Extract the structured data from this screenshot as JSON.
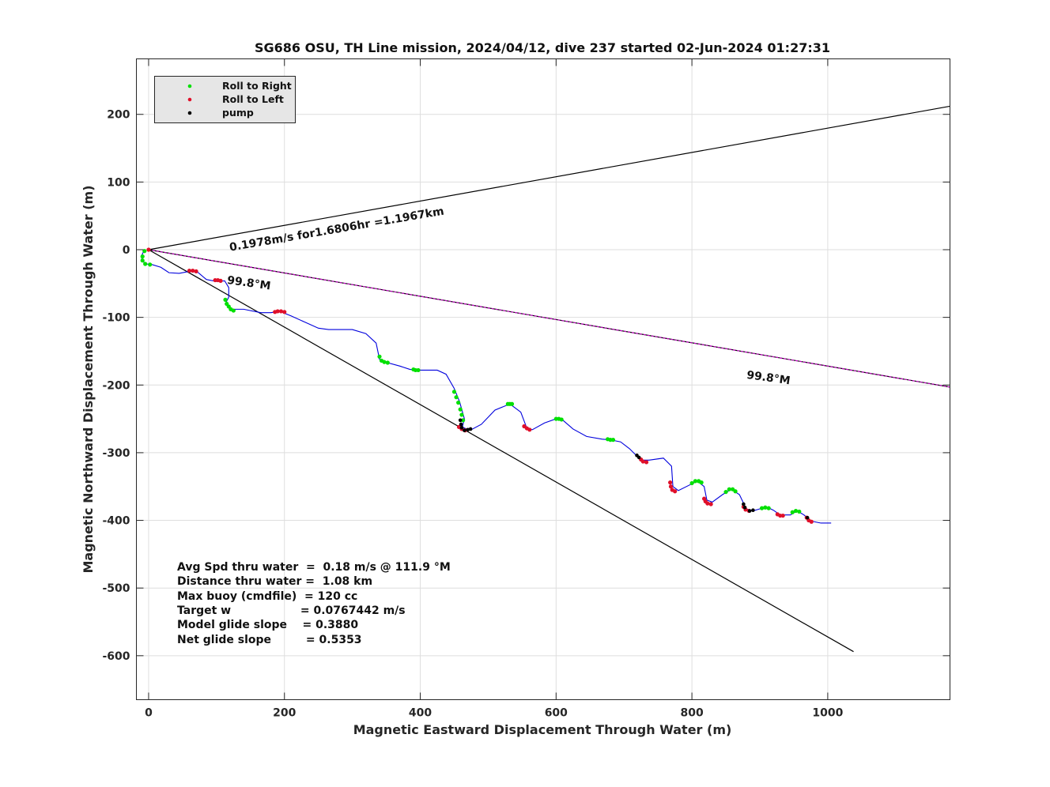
{
  "chart_data": {
    "type": "scatter",
    "title": "SG686 OSU, TH Line mission, 2024/04/12, dive 237 started 02-Jun-2024 01:27:31",
    "xlabel": "Magnetic Eastward Displacement Through Water (m)",
    "ylabel": "Magnetic Northward Displacement Through Water (m)",
    "xlim": [
      -18,
      1180
    ],
    "ylim": [
      -665,
      282
    ],
    "x_ticks": [
      0,
      200,
      400,
      600,
      800,
      1000
    ],
    "y_ticks": [
      200,
      100,
      0,
      -100,
      -200,
      -300,
      -400,
      -500,
      -600
    ],
    "grid": true,
    "legend_position": "top-left",
    "legend": [
      {
        "label": "Roll to Right",
        "color": "#00e000"
      },
      {
        "label": "Roll to Left",
        "color": "#e0102a"
      },
      {
        "label": "pump",
        "color": "#000000"
      }
    ],
    "reference_lines": [
      {
        "color": "#000000",
        "points": [
          [
            0,
            0
          ],
          [
            1180,
            212
          ]
        ]
      },
      {
        "color": "#000000",
        "points": [
          [
            0,
            0
          ],
          [
            1038,
            -594
          ]
        ]
      },
      {
        "color": "#000000",
        "points": [
          [
            0,
            0
          ],
          [
            1180,
            -203
          ]
        ]
      },
      {
        "color": "#cc00cc",
        "points": [
          [
            0,
            0
          ],
          [
            1180,
            -203
          ]
        ],
        "dashed": true
      }
    ],
    "track_color": "#0000dd",
    "track": [
      [
        -6,
        0
      ],
      [
        -10,
        -8
      ],
      [
        -10,
        -16
      ],
      [
        -4,
        -21
      ],
      [
        5,
        -22
      ],
      [
        18,
        -26
      ],
      [
        30,
        -34
      ],
      [
        45,
        -35
      ],
      [
        60,
        -32
      ],
      [
        72,
        -33
      ],
      [
        85,
        -44
      ],
      [
        100,
        -47
      ],
      [
        112,
        -46
      ],
      [
        118,
        -56
      ],
      [
        118,
        -70
      ],
      [
        113,
        -80
      ],
      [
        120,
        -88
      ],
      [
        140,
        -88
      ],
      [
        165,
        -93
      ],
      [
        180,
        -93
      ],
      [
        193,
        -91
      ],
      [
        210,
        -98
      ],
      [
        230,
        -107
      ],
      [
        250,
        -116
      ],
      [
        265,
        -118
      ],
      [
        300,
        -118
      ],
      [
        320,
        -124
      ],
      [
        335,
        -138
      ],
      [
        340,
        -162
      ],
      [
        348,
        -166
      ],
      [
        370,
        -172
      ],
      [
        385,
        -177
      ],
      [
        398,
        -178
      ],
      [
        425,
        -178
      ],
      [
        438,
        -184
      ],
      [
        450,
        -205
      ],
      [
        458,
        -225
      ],
      [
        465,
        -250
      ],
      [
        462,
        -262
      ],
      [
        470,
        -266
      ],
      [
        475,
        -266
      ],
      [
        490,
        -258
      ],
      [
        510,
        -237
      ],
      [
        532,
        -228
      ],
      [
        548,
        -240
      ],
      [
        557,
        -264
      ],
      [
        565,
        -266
      ],
      [
        583,
        -256
      ],
      [
        600,
        -250
      ],
      [
        610,
        -252
      ],
      [
        625,
        -265
      ],
      [
        645,
        -276
      ],
      [
        668,
        -280
      ],
      [
        680,
        -281
      ],
      [
        695,
        -284
      ],
      [
        708,
        -294
      ],
      [
        725,
        -311
      ],
      [
        737,
        -311
      ],
      [
        758,
        -308
      ],
      [
        770,
        -320
      ],
      [
        772,
        -350
      ],
      [
        780,
        -356
      ],
      [
        800,
        -346
      ],
      [
        808,
        -342
      ],
      [
        818,
        -350
      ],
      [
        822,
        -370
      ],
      [
        830,
        -373
      ],
      [
        845,
        -362
      ],
      [
        858,
        -354
      ],
      [
        870,
        -362
      ],
      [
        880,
        -383
      ],
      [
        890,
        -386
      ],
      [
        900,
        -383
      ],
      [
        912,
        -381
      ],
      [
        920,
        -385
      ],
      [
        930,
        -392
      ],
      [
        945,
        -392
      ],
      [
        955,
        -386
      ],
      [
        965,
        -392
      ],
      [
        975,
        -401
      ],
      [
        990,
        -404
      ],
      [
        1005,
        -404
      ]
    ],
    "roll_right": [
      [
        -6,
        -2
      ],
      [
        -9,
        -10
      ],
      [
        -9,
        -16
      ],
      [
        -5,
        -21
      ],
      [
        2,
        -22
      ],
      [
        113,
        -74
      ],
      [
        115,
        -80
      ],
      [
        118,
        -84
      ],
      [
        121,
        -88
      ],
      [
        125,
        -90
      ],
      [
        340,
        -158
      ],
      [
        343,
        -164
      ],
      [
        347,
        -166
      ],
      [
        352,
        -167
      ],
      [
        390,
        -177
      ],
      [
        393,
        -178
      ],
      [
        397,
        -178
      ],
      [
        450,
        -210
      ],
      [
        453,
        -218
      ],
      [
        456,
        -226
      ],
      [
        459,
        -236
      ],
      [
        461,
        -244
      ],
      [
        463,
        -252
      ],
      [
        529,
        -228
      ],
      [
        532,
        -228
      ],
      [
        535,
        -228
      ],
      [
        600,
        -250
      ],
      [
        604,
        -250
      ],
      [
        608,
        -251
      ],
      [
        676,
        -280
      ],
      [
        680,
        -281
      ],
      [
        684,
        -281
      ],
      [
        800,
        -345
      ],
      [
        805,
        -342
      ],
      [
        810,
        -342
      ],
      [
        814,
        -344
      ],
      [
        850,
        -358
      ],
      [
        855,
        -354
      ],
      [
        860,
        -354
      ],
      [
        864,
        -357
      ],
      [
        903,
        -382
      ],
      [
        908,
        -381
      ],
      [
        913,
        -382
      ],
      [
        948,
        -388
      ],
      [
        953,
        -386
      ],
      [
        958,
        -387
      ]
    ],
    "roll_left": [
      [
        0,
        0
      ],
      [
        60,
        -31
      ],
      [
        65,
        -31
      ],
      [
        70,
        -32
      ],
      [
        98,
        -45
      ],
      [
        102,
        -45
      ],
      [
        106,
        -46
      ],
      [
        186,
        -92
      ],
      [
        190,
        -91
      ],
      [
        195,
        -91
      ],
      [
        200,
        -92
      ],
      [
        457,
        -262
      ],
      [
        461,
        -265
      ],
      [
        466,
        -267
      ],
      [
        553,
        -261
      ],
      [
        557,
        -264
      ],
      [
        561,
        -266
      ],
      [
        725,
        -310
      ],
      [
        728,
        -313
      ],
      [
        733,
        -314
      ],
      [
        768,
        -344
      ],
      [
        769,
        -350
      ],
      [
        771,
        -355
      ],
      [
        775,
        -357
      ],
      [
        818,
        -368
      ],
      [
        820,
        -372
      ],
      [
        823,
        -375
      ],
      [
        828,
        -376
      ],
      [
        876,
        -380
      ],
      [
        879,
        -384
      ],
      [
        884,
        -386
      ],
      [
        926,
        -391
      ],
      [
        930,
        -393
      ],
      [
        934,
        -393
      ],
      [
        969,
        -396
      ],
      [
        972,
        -400
      ],
      [
        976,
        -402
      ]
    ],
    "pump": [
      [
        459,
        -252
      ],
      [
        460,
        -258
      ],
      [
        461,
        -263
      ],
      [
        465,
        -267
      ],
      [
        470,
        -266
      ],
      [
        474,
        -265
      ],
      [
        719,
        -304
      ],
      [
        722,
        -307
      ],
      [
        876,
        -376
      ],
      [
        878,
        -381
      ],
      [
        885,
        -386
      ],
      [
        890,
        -385
      ],
      [
        970,
        -396
      ]
    ],
    "annotations": [
      {
        "text": "0.1978m/s for1.6806hr =1.1967km",
        "x": 120,
        "y": -2,
        "rotate": -9.7
      },
      {
        "text": "99.8°M",
        "x": 115,
        "y": -50,
        "rotate": 8
      },
      {
        "text": "99.8°M",
        "x": 880,
        "y": -190,
        "rotate": 8
      }
    ],
    "stats": [
      "Avg Spd thru water  =  0.18 m/s @ 111.9 °M",
      "Distance thru water =  1.08 km",
      "Max buoy (cmdfile)  = 120 cc",
      "Target w                  = 0.0767442 m/s",
      "Model glide slope    = 0.3880",
      "Net glide slope         = 0.5353"
    ]
  }
}
